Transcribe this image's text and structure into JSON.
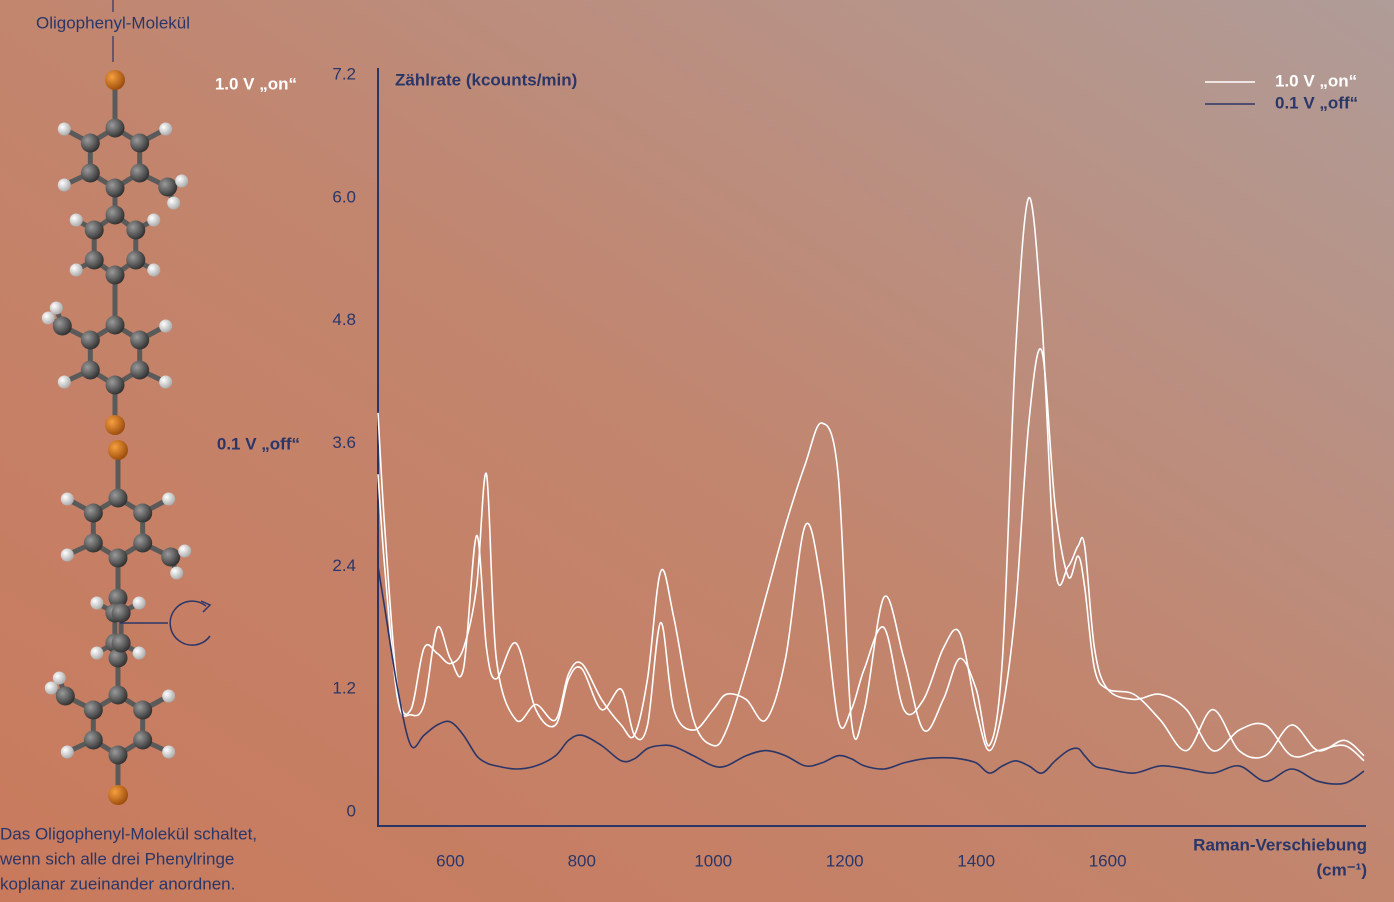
{
  "chart_data": {
    "type": "line",
    "molecule_label": "Oligophenyl-Molekül",
    "caption": [
      "Das Oligophenyl-Molekül schaltet,",
      "wenn sich alle drei Phenylringe",
      "koplanar zueinander anordnen."
    ],
    "y_label": "Zählrate (kcounts/min)",
    "x_label": "Raman-Verschiebung",
    "x_unit": "(cm⁻¹)",
    "x": [
      490,
      500,
      520,
      540,
      560,
      580,
      600,
      620,
      640,
      655,
      670,
      700,
      730,
      760,
      780,
      800,
      830,
      860,
      880,
      900,
      920,
      940,
      970,
      1000,
      1020,
      1050,
      1080,
      1110,
      1140,
      1165,
      1190,
      1210,
      1230,
      1260,
      1290,
      1320,
      1350,
      1375,
      1400,
      1420,
      1440,
      1460,
      1480,
      1500,
      1520,
      1540,
      1555,
      1565,
      1580,
      1600,
      1640,
      1680,
      1720,
      1760,
      1800,
      1840,
      1880,
      1920,
      1960,
      1990
    ],
    "series": [
      {
        "name": "1.0 V „on“",
        "color": "#ffffff",
        "values": [
          3.9,
          2.8,
          1.2,
          1.0,
          1.6,
          1.55,
          1.45,
          1.6,
          2.2,
          3.3,
          1.5,
          0.9,
          1.05,
          0.9,
          1.35,
          1.45,
          1.1,
          0.85,
          0.75,
          1.3,
          2.35,
          1.9,
          0.9,
          0.65,
          0.8,
          1.4,
          2.1,
          2.8,
          3.4,
          3.8,
          3.3,
          0.9,
          1.0,
          2.1,
          1.5,
          0.8,
          1.1,
          1.5,
          1.2,
          0.65,
          1.5,
          4.5,
          6.0,
          4.8,
          2.4,
          2.4,
          2.6,
          2.6,
          1.6,
          1.2,
          1.1,
          1.15,
          1.0,
          0.6,
          0.8,
          0.85,
          0.55,
          0.6,
          0.65,
          0.5
        ]
      },
      {
        "color": "#ffffff",
        "values": [
          3.3,
          2.4,
          1.1,
          0.95,
          1.05,
          1.8,
          1.5,
          1.4,
          2.7,
          1.6,
          1.3,
          1.65,
          1.0,
          0.85,
          1.3,
          1.4,
          1.0,
          1.2,
          0.75,
          0.85,
          1.85,
          1.0,
          0.8,
          1.0,
          1.15,
          1.1,
          0.9,
          1.5,
          2.8,
          2.2,
          0.9,
          1.0,
          1.4,
          1.8,
          1.0,
          1.1,
          1.6,
          1.75,
          1.0,
          0.6,
          1.0,
          2.0,
          3.8,
          4.5,
          3.0,
          2.3,
          2.5,
          2.2,
          1.4,
          1.2,
          1.15,
          0.9,
          0.6,
          1.0,
          0.6,
          0.55,
          0.85,
          0.6,
          0.7,
          0.55
        ]
      },
      {
        "name": "0.1 V „off“",
        "color": "#2b3668",
        "values": [
          2.4,
          2.0,
          1.2,
          0.65,
          0.75,
          0.85,
          0.88,
          0.75,
          0.55,
          0.48,
          0.45,
          0.42,
          0.45,
          0.55,
          0.7,
          0.75,
          0.65,
          0.5,
          0.52,
          0.62,
          0.65,
          0.64,
          0.55,
          0.45,
          0.45,
          0.55,
          0.6,
          0.55,
          0.45,
          0.48,
          0.55,
          0.52,
          0.45,
          0.42,
          0.48,
          0.52,
          0.53,
          0.52,
          0.48,
          0.38,
          0.45,
          0.5,
          0.45,
          0.38,
          0.5,
          0.6,
          0.62,
          0.55,
          0.45,
          0.42,
          0.38,
          0.45,
          0.42,
          0.38,
          0.45,
          0.3,
          0.42,
          0.3,
          0.28,
          0.4
        ]
      }
    ],
    "xlim": [
      490,
      1990
    ],
    "xticks": [
      600,
      800,
      1000,
      1200,
      1400,
      1600
    ],
    "ylim": [
      0,
      7.2
    ],
    "yticks": [
      0,
      1.2,
      2.4,
      3.6,
      4.8,
      {
        "value": 6,
        "label": "6.0"
      },
      7.2
    ],
    "grid": false,
    "legend": "top-right"
  }
}
